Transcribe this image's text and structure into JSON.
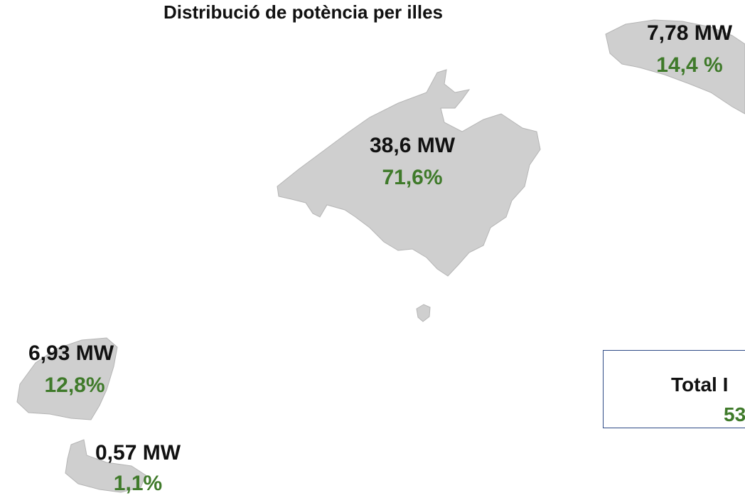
{
  "title": "Distribució de potència per illes",
  "islands": [
    {
      "power": "38,6 MW",
      "share": "71,6%"
    },
    {
      "power": "7,78 MW",
      "share": "14,4 %"
    },
    {
      "power": "6,93 MW",
      "share": "12,8%"
    },
    {
      "power": "0,57 MW",
      "share": "1,1%"
    }
  ],
  "total": {
    "label": "Total I",
    "value": "53"
  }
}
